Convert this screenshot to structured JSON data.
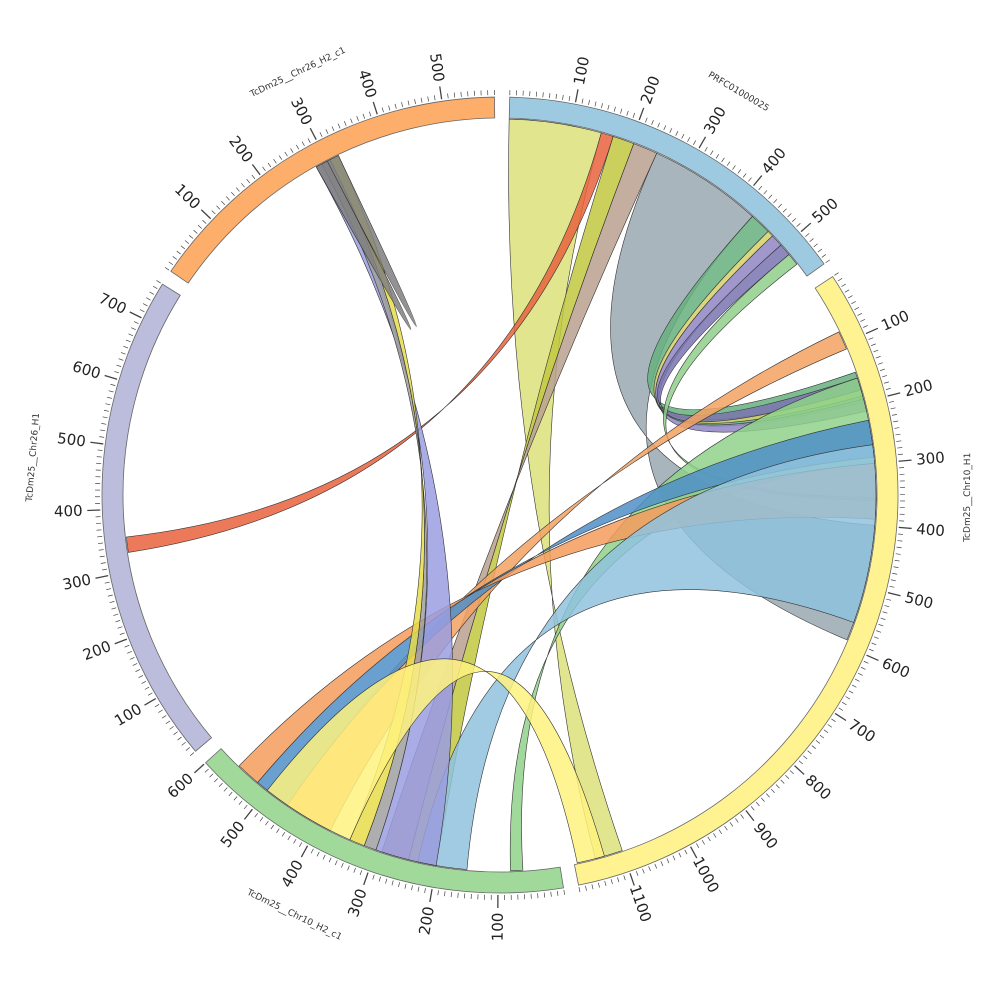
{
  "segments": [
    {
      "name": "PRFC01000025",
      "length": 560,
      "color": "#9ecae1",
      "tick_step": 100
    },
    {
      "name": "TcDm25__Chr10_H1",
      "length": 1180,
      "color": "#fff291",
      "tick_step": 100
    },
    {
      "name": "TcDm25__Chr10_H2_c1",
      "length": 600,
      "color": "#a1d99b",
      "tick_step": 100
    },
    {
      "name": "TcDm25__Chr26_H1",
      "length": 760,
      "color": "#bcbddc",
      "tick_step": 100
    },
    {
      "name": "TcDm25__Chr26_H2_c1",
      "length": 580,
      "color": "#fdae6b",
      "tick_step": 100
    }
  ],
  "links": [
    {
      "a": 0,
      "a0": 0,
      "a1": 150,
      "b": 1,
      "b0": 1100,
      "b1": 1145,
      "color": "#dce27a"
    },
    {
      "a": 0,
      "a0": 150,
      "a1": 170,
      "b": 3,
      "b0": 330,
      "b1": 355,
      "color": "#e8623d"
    },
    {
      "a": 0,
      "a0": 170,
      "a1": 205,
      "b": 2,
      "b0": 200,
      "b1": 245,
      "color": "#c2c83f"
    },
    {
      "a": 0,
      "a0": 205,
      "a1": 245,
      "b": 2,
      "b0": 245,
      "b1": 290,
      "color": "#b8a08e"
    },
    {
      "a": 0,
      "a0": 245,
      "a1": 430,
      "b": 1,
      "b0": 400,
      "b1": 590,
      "color": "#9aa8b2"
    },
    {
      "a": 0,
      "a0": 430,
      "a1": 465,
      "b": 1,
      "b0": 150,
      "b1": 200,
      "color": "#66b07e"
    },
    {
      "a": 0,
      "a0": 465,
      "a1": 475,
      "b": 1,
      "b0": 180,
      "b1": 190,
      "color": "#d4d06a"
    },
    {
      "a": 0,
      "a0": 475,
      "a1": 495,
      "b": 1,
      "b0": 195,
      "b1": 215,
      "color": "#8f86c4"
    },
    {
      "a": 0,
      "a0": 495,
      "a1": 515,
      "b": 1,
      "b0": 160,
      "b1": 180,
      "color": "#7a74b0"
    },
    {
      "a": 0,
      "a0": 515,
      "a1": 535,
      "b": 1,
      "b0": 355,
      "b1": 360,
      "color": "#8fcf8a"
    },
    {
      "a": 1,
      "a0": 80,
      "a1": 110,
      "b": 2,
      "b0": 380,
      "b1": 460,
      "color": "#f3a263"
    },
    {
      "a": 1,
      "a0": 160,
      "a1": 300,
      "b": 2,
      "b0": 60,
      "b1": 80,
      "color": "#8fd28a"
    },
    {
      "a": 1,
      "a0": 230,
      "a1": 290,
      "b": 2,
      "b0": 460,
      "b1": 520,
      "color": "#4f8fc8"
    },
    {
      "a": 1,
      "a0": 300,
      "a1": 390,
      "b": 2,
      "b0": 520,
      "b1": 560,
      "color": "#f59b5c"
    },
    {
      "a": 1,
      "a0": 270,
      "a1": 560,
      "b": 2,
      "b0": 150,
      "b1": 230,
      "color": "#8fc2de"
    },
    {
      "a": 2,
      "a0": 200,
      "a1": 300,
      "b": 4,
      "b0": 280,
      "b1": 300,
      "color": "#9a9ee0"
    },
    {
      "a": 2,
      "a0": 300,
      "a1": 320,
      "b": 4,
      "b0": 290,
      "b1": 305,
      "color": "#a0a0a0"
    },
    {
      "a": 2,
      "a0": 320,
      "a1": 345,
      "b": 4,
      "b0": 305,
      "b1": 320,
      "color": "#e6dc4a"
    },
    {
      "a": 2,
      "a0": 345,
      "a1": 500,
      "b": 1,
      "b0": 1130,
      "b1": 1175,
      "color": "#fff27f"
    },
    {
      "a": 4,
      "a0": 280,
      "a1": 300,
      "b": 4,
      "b0": 300,
      "b1": 320,
      "color": "#7f7f7f"
    }
  ]
}
